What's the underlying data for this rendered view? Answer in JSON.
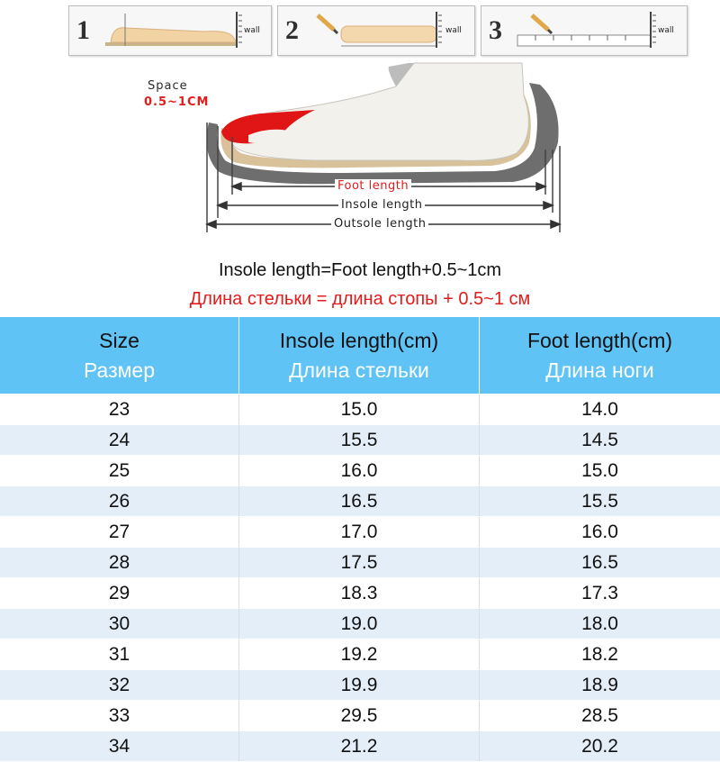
{
  "steps": [
    {
      "number": "1",
      "wall_label": "wall"
    },
    {
      "number": "2",
      "wall_label": "wall"
    },
    {
      "number": "3",
      "wall_label": "wall"
    }
  ],
  "diagram": {
    "space_label": "Space",
    "space_value": "0.5~1CM",
    "foot_length": "Foot length",
    "insole_length": "Insole length",
    "outsole_length": "Outsole length"
  },
  "formula": {
    "english": "Insole length=Foot length+0.5~1cm",
    "russian": "Длина стельки = длина стопы + 0.5~1 см"
  },
  "table": {
    "headers": [
      {
        "en": "Size",
        "ru": "Размер"
      },
      {
        "en": "Insole length(cm)",
        "ru": "Длина стельки"
      },
      {
        "en": "Foot length(cm)",
        "ru": "Длина ноги"
      }
    ],
    "rows": [
      [
        "23",
        "15.0",
        "14.0"
      ],
      [
        "24",
        "15.5",
        "14.5"
      ],
      [
        "25",
        "16.0",
        "15.0"
      ],
      [
        "26",
        "16.5",
        "15.5"
      ],
      [
        "27",
        "17.0",
        "16.0"
      ],
      [
        "28",
        "17.5",
        "16.5"
      ],
      [
        "29",
        "18.3",
        "17.3"
      ],
      [
        "30",
        "19.0",
        "18.0"
      ],
      [
        "31",
        "19.2",
        "18.2"
      ],
      [
        "32",
        "19.9",
        "18.9"
      ],
      [
        "33",
        "29.5",
        "28.5"
      ],
      [
        "34",
        "21.2",
        "20.2"
      ]
    ]
  },
  "colors": {
    "header_bg": "#5fc3f5",
    "row_alt_bg": "#e4eef9",
    "accent_red": "#e21b1b"
  }
}
